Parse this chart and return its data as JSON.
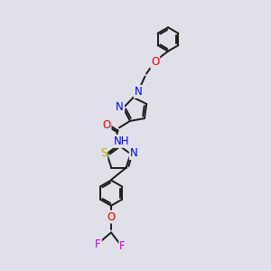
{
  "bg_color": "#e0e0e8",
  "bond_color": "#1a1a1a",
  "bond_width": 1.4,
  "atom_colors": {
    "N": "#0000ee",
    "O": "#ee0000",
    "S": "#bbaa00",
    "F": "#cc00cc",
    "C": "#1a1a1a"
  },
  "font_size": 7.5,
  "fig_width": 3.0,
  "fig_height": 3.0,
  "dpi": 100,
  "xlim": [
    0,
    10
  ],
  "ylim": [
    0,
    10
  ]
}
